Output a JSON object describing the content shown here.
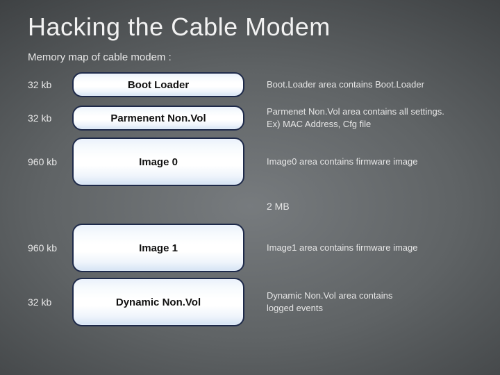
{
  "title": "Hacking the Cable Modem",
  "subtitle": "Memory map of cable modem :",
  "diagram": {
    "type": "infographic",
    "background_color": "#3a3d3f",
    "block_border_color": "#1e2a4a",
    "block_gradient": [
      "#eaf1fb",
      "#ffffff",
      "#d5e3f4"
    ],
    "text_color": "#e6e6e6",
    "title_fontsize": 36,
    "subtitle_fontsize": 15,
    "label_fontsize": 15,
    "desc_fontsize": 13
  },
  "rows": [
    {
      "size": "32 kb",
      "label": "Boot Loader",
      "desc": "Boot.Loader area contains Boot.Loader",
      "tall": false
    },
    {
      "size": "32 kb",
      "label": "Parmenent Non.Vol",
      "desc": "Parmenet Non.Vol area contains all settings.\nEx) MAC Address, Cfg file",
      "tall": false
    },
    {
      "size": "960 kb",
      "label": "Image 0",
      "desc": "Image0 area contains firmware image",
      "tall": true
    }
  ],
  "gap_label": "2 MB",
  "rows2": [
    {
      "size": "960 kb",
      "label": "Image 1",
      "desc": "Image1 area contains firmware image",
      "tall": true
    },
    {
      "size": "32 kb",
      "label": "Dynamic Non.Vol",
      "desc": "Dynamic Non.Vol area contains\nlogged events",
      "tall": true
    }
  ]
}
